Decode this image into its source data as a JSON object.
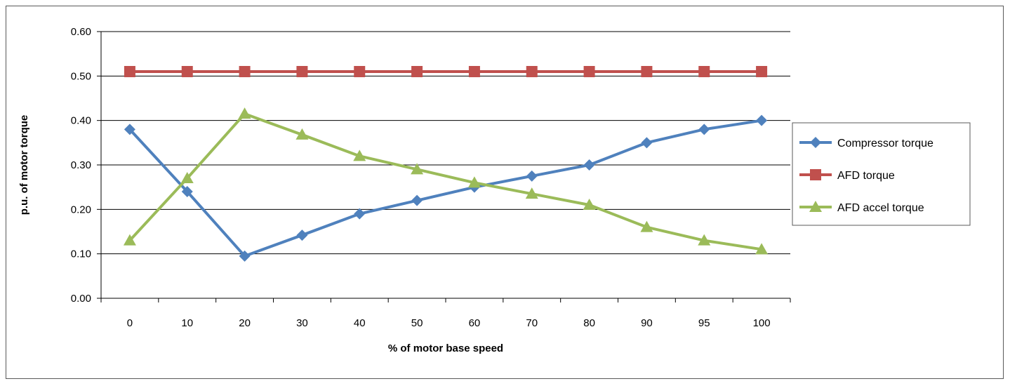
{
  "chart_data": {
    "type": "line",
    "categories": [
      "0",
      "10",
      "20",
      "30",
      "40",
      "50",
      "60",
      "70",
      "80",
      "90",
      "95",
      "100"
    ],
    "xlabel": "% of motor base speed",
    "ylabel": "p.u. of motor torque",
    "ylim": [
      0,
      0.6
    ],
    "yticks": [
      "0.00",
      "0.10",
      "0.20",
      "0.30",
      "0.40",
      "0.50",
      "0.60"
    ],
    "grid": true,
    "legend_position": "right",
    "series": [
      {
        "name": "Compressor torque",
        "color": "#4F81BD",
        "marker": "diamond",
        "values": [
          0.38,
          0.24,
          0.095,
          0.142,
          0.19,
          0.22,
          0.25,
          0.275,
          0.3,
          0.35,
          0.38,
          0.4
        ]
      },
      {
        "name": "AFD torque",
        "color": "#C0504D",
        "marker": "square",
        "values": [
          0.51,
          0.51,
          0.51,
          0.51,
          0.51,
          0.51,
          0.51,
          0.51,
          0.51,
          0.51,
          0.51,
          0.51
        ]
      },
      {
        "name": "AFD accel torque",
        "color": "#9BBB59",
        "marker": "triangle",
        "values": [
          0.13,
          0.27,
          0.415,
          0.368,
          0.32,
          0.29,
          0.26,
          0.235,
          0.21,
          0.16,
          0.13,
          0.11
        ]
      }
    ]
  }
}
